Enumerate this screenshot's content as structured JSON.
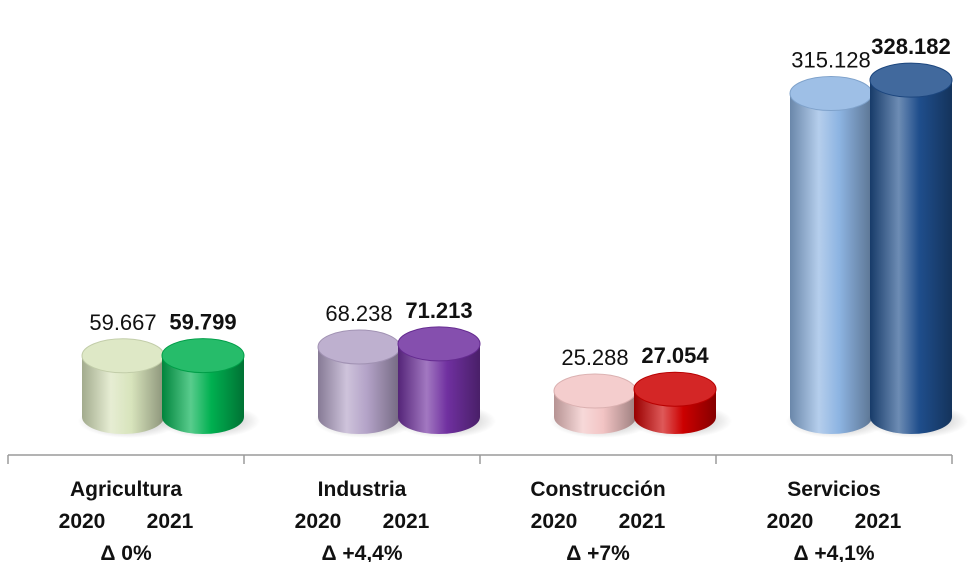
{
  "chart_data": {
    "type": "bar",
    "style": "3d-cylinder",
    "ylim": [
      0,
      340000
    ],
    "grid": false,
    "categories": [
      "Agricultura",
      "Industria",
      "Construcción",
      "Servicios"
    ],
    "year_labels": [
      "2020",
      "2021"
    ],
    "series": [
      {
        "values": [
          59667,
          68238,
          25288,
          315128
        ],
        "value_labels": [
          "59.667",
          "68.238",
          "25.288",
          "315.128"
        ],
        "label_weight": "normal"
      },
      {
        "values": [
          59799,
          71213,
          27054,
          328182
        ],
        "value_labels": [
          "59.799",
          "71.213",
          "27.054",
          "328.182"
        ],
        "label_weight": "bold"
      }
    ],
    "deltas": [
      "Δ 0%",
      "Δ +4,4%",
      "Δ +7%",
      "Δ +4,1%"
    ],
    "colors": [
      [
        "#d8e4bc",
        "#00b050"
      ],
      [
        "#b3a2c7",
        "#7030a0"
      ],
      [
        "#f2c4c4",
        "#cc0000"
      ],
      [
        "#8db4e2",
        "#1f4e8c"
      ]
    ]
  }
}
